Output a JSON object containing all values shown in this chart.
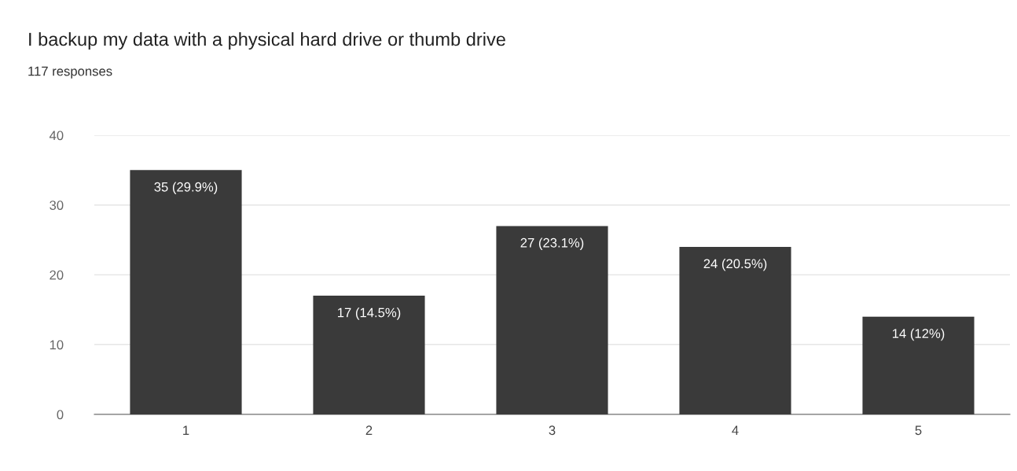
{
  "chart_data": {
    "type": "bar",
    "title": "I backup my data with a physical hard drive or thumb drive",
    "subtitle": "117 responses",
    "categories": [
      "1",
      "2",
      "3",
      "4",
      "5"
    ],
    "values": [
      35,
      17,
      27,
      24,
      14
    ],
    "value_labels": [
      "35 (29.9%)",
      "17 (14.5%)",
      "27 (23.1%)",
      "24 (20.5%)",
      "14 (12%)"
    ],
    "color": "#3a3a3a",
    "ylim": [
      0,
      40
    ],
    "yticks": [
      0,
      10,
      20,
      30,
      40
    ],
    "grid": "y"
  }
}
